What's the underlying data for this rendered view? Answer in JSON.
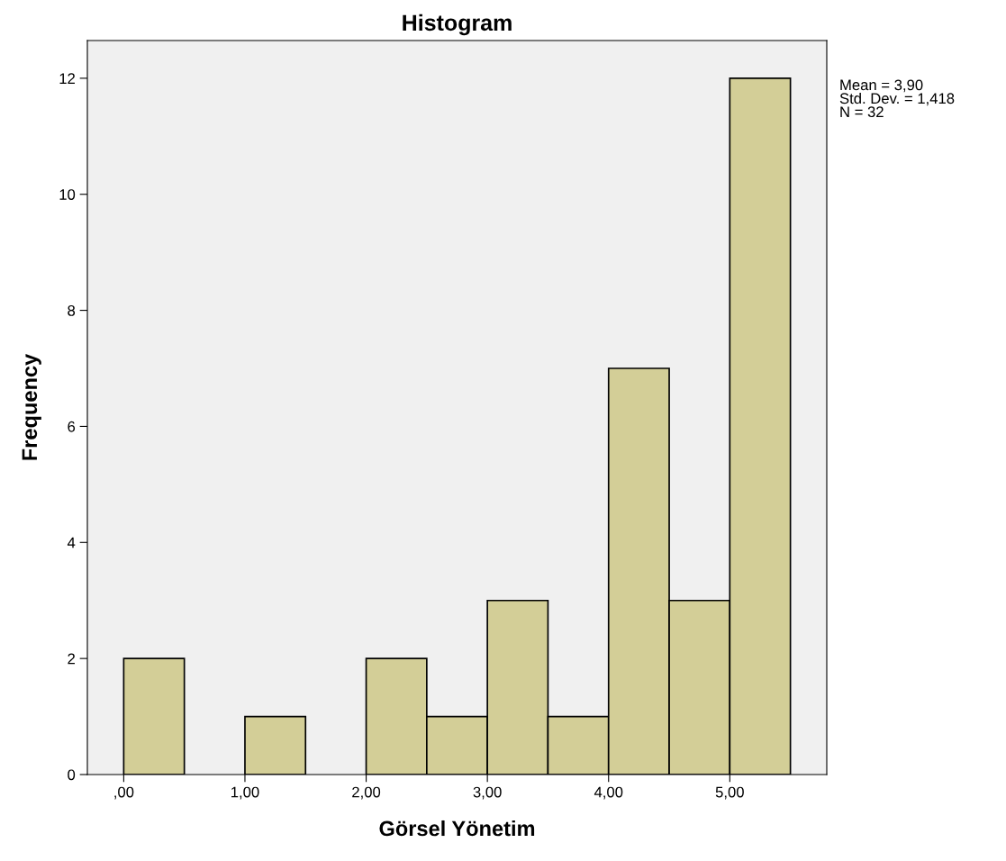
{
  "chart_data": {
    "type": "histogram",
    "title": "Histogram",
    "xlabel": "Görsel Yönetim",
    "ylabel": "Frequency",
    "bins": [
      0,
      0.5,
      1,
      1.5,
      2,
      2.5,
      3,
      3.5,
      4,
      4.5,
      5,
      5.5
    ],
    "values": [
      2,
      0,
      1,
      0,
      2,
      1,
      3,
      1,
      7,
      3,
      12
    ],
    "color": "#d3ce97",
    "xlim": [
      -0.3,
      5.8
    ],
    "xticks": [
      {
        "value": 0,
        "label": ",00"
      },
      {
        "value": 1,
        "label": "1,00"
      },
      {
        "value": 2,
        "label": "2,00"
      },
      {
        "value": 3,
        "label": "3,00"
      },
      {
        "value": 4,
        "label": "4,00"
      },
      {
        "value": 5,
        "label": "5,00"
      }
    ],
    "ylim": [
      0,
      12.65
    ],
    "yticks": [
      0,
      2,
      4,
      6,
      8,
      10,
      12
    ],
    "grid": false,
    "annotations": [
      "Mean = 3,90\nStd. Dev. = 1,418\nN = 32"
    ]
  }
}
